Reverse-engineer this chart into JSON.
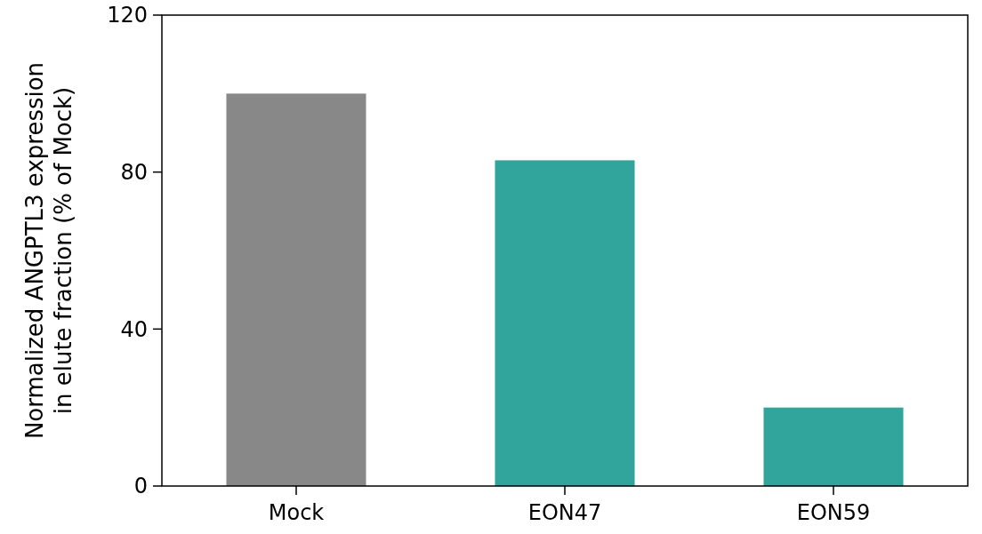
{
  "chart_data": {
    "type": "bar",
    "ylabel": "Normalized ANGPTL3 expression\nin elute fraction (% of Mock)",
    "categories": [
      "Mock",
      "EON47",
      "EON59"
    ],
    "values": [
      100,
      83,
      20
    ],
    "colors": [
      "#888888",
      "#31a59c",
      "#31a59c"
    ],
    "ylim": [
      0,
      120
    ],
    "yticks": [
      0,
      40,
      80,
      120
    ],
    "grid": false
  }
}
